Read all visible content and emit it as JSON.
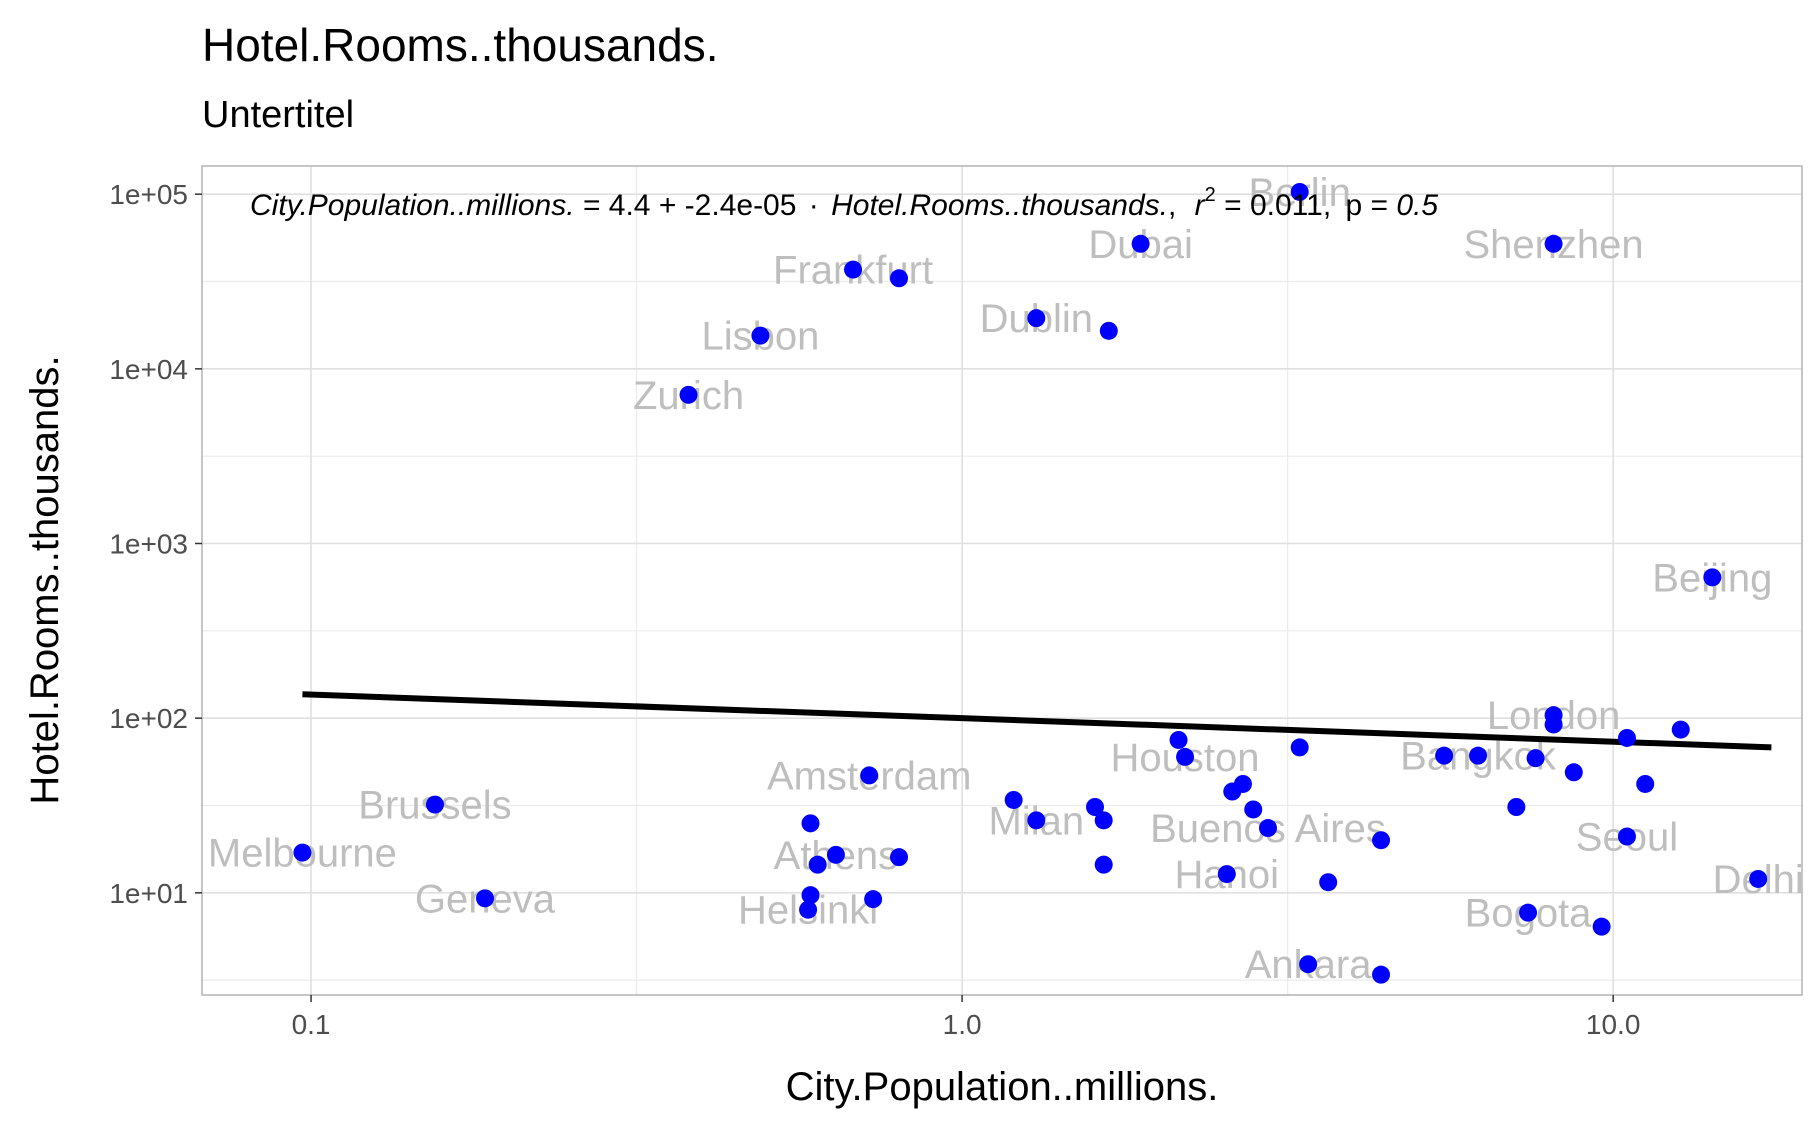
{
  "chart_data": {
    "type": "scatter",
    "title": "Hotel.Rooms..thousands.",
    "subtitle": "Untertitel",
    "xlabel": "City.Population..millions.",
    "ylabel": "Hotel.Rooms..thousands.",
    "x_scale": "log10",
    "y_scale": "log10",
    "xlim": [
      0.068,
      19.5
    ],
    "ylim": [
      2.6,
      145000
    ],
    "x_ticks": [
      {
        "value": 0.1,
        "label": "0.1"
      },
      {
        "value": 1,
        "label": "1.0"
      },
      {
        "value": 10,
        "label": "10.0"
      }
    ],
    "y_ticks": [
      {
        "value": 10,
        "label": "1e+01"
      },
      {
        "value": 100,
        "label": "1e+02"
      },
      {
        "value": 1000,
        "label": "1e+03"
      },
      {
        "value": 10000,
        "label": "1e+04"
      },
      {
        "value": 100000,
        "label": "1e+05"
      }
    ],
    "grid": true,
    "point_color": "#0000ff",
    "label_color": "#bebebe",
    "line_color": "#000000",
    "equation": {
      "lhs": "City.Population..millions.",
      "eq": "= 4.4 + -2.4e-05",
      "dot": "·",
      "var": "Hotel.Rooms..thousands.",
      "comma1": ",",
      "r": "r",
      "sup": "2",
      "rval": "= 0.011,",
      "p": "p =",
      "pval": "0.5"
    },
    "trend_line": [
      {
        "x": 0.097,
        "y": 137
      },
      {
        "x": 17.5,
        "y": 68
      }
    ],
    "points": [
      {
        "x": 0.097,
        "y": 17,
        "label": "Melbourne"
      },
      {
        "x": 0.155,
        "y": 32,
        "label": "Brussels"
      },
      {
        "x": 0.185,
        "y": 9.3,
        "label": "Geneva"
      },
      {
        "x": 0.38,
        "y": 7100,
        "label": "Zurich"
      },
      {
        "x": 0.49,
        "y": 15500,
        "label": "Lisbon"
      },
      {
        "x": 0.585,
        "y": 25,
        "label": ""
      },
      {
        "x": 0.585,
        "y": 9.7,
        "label": ""
      },
      {
        "x": 0.58,
        "y": 8,
        "label": "Helsinki"
      },
      {
        "x": 0.6,
        "y": 14.5,
        "label": ""
      },
      {
        "x": 0.64,
        "y": 16.5,
        "label": "Athens"
      },
      {
        "x": 0.68,
        "y": 37000,
        "label": "Frankfurt"
      },
      {
        "x": 0.72,
        "y": 47,
        "label": "Amsterdam"
      },
      {
        "x": 0.73,
        "y": 9.2,
        "label": ""
      },
      {
        "x": 0.8,
        "y": 33000,
        "label": ""
      },
      {
        "x": 0.8,
        "y": 16,
        "label": ""
      },
      {
        "x": 1.2,
        "y": 34,
        "label": ""
      },
      {
        "x": 1.3,
        "y": 26,
        "label": "Milan"
      },
      {
        "x": 1.3,
        "y": 19500,
        "label": "Dublin"
      },
      {
        "x": 1.6,
        "y": 31,
        "label": ""
      },
      {
        "x": 1.65,
        "y": 26,
        "label": ""
      },
      {
        "x": 1.65,
        "y": 14.5,
        "label": ""
      },
      {
        "x": 1.68,
        "y": 16500,
        "label": ""
      },
      {
        "x": 1.88,
        "y": 52000,
        "label": "Dubai"
      },
      {
        "x": 2.15,
        "y": 75,
        "label": ""
      },
      {
        "x": 2.2,
        "y": 60,
        "label": "Houston"
      },
      {
        "x": 2.6,
        "y": 38,
        "label": ""
      },
      {
        "x": 2.7,
        "y": 42,
        "label": ""
      },
      {
        "x": 2.8,
        "y": 30,
        "label": ""
      },
      {
        "x": 2.95,
        "y": 23.5,
        "label": "Buenos Aires"
      },
      {
        "x": 2.55,
        "y": 12.8,
        "label": "Hanoi"
      },
      {
        "x": 3.3,
        "y": 68,
        "label": ""
      },
      {
        "x": 3.3,
        "y": 103000,
        "label": "Berlin"
      },
      {
        "x": 3.4,
        "y": 3.9,
        "label": "Ankara"
      },
      {
        "x": 3.65,
        "y": 11.5,
        "label": ""
      },
      {
        "x": 4.4,
        "y": 20,
        "label": ""
      },
      {
        "x": 4.4,
        "y": 3.4,
        "label": ""
      },
      {
        "x": 5.5,
        "y": 61,
        "label": ""
      },
      {
        "x": 6.2,
        "y": 61,
        "label": "Bangkok"
      },
      {
        "x": 7.1,
        "y": 31,
        "label": ""
      },
      {
        "x": 7.4,
        "y": 7.7,
        "label": "Bogota"
      },
      {
        "x": 7.6,
        "y": 59,
        "label": ""
      },
      {
        "x": 8.1,
        "y": 92,
        "label": ""
      },
      {
        "x": 8.1,
        "y": 104,
        "label": "London"
      },
      {
        "x": 8.1,
        "y": 52000,
        "label": "Shenzhen"
      },
      {
        "x": 8.7,
        "y": 49,
        "label": ""
      },
      {
        "x": 9.6,
        "y": 6.4,
        "label": ""
      },
      {
        "x": 10.5,
        "y": 77,
        "label": ""
      },
      {
        "x": 10.5,
        "y": 21,
        "label": "Seoul"
      },
      {
        "x": 11.2,
        "y": 42,
        "label": ""
      },
      {
        "x": 12.7,
        "y": 86,
        "label": ""
      },
      {
        "x": 14.2,
        "y": 640,
        "label": "Beijing"
      },
      {
        "x": 16.7,
        "y": 12,
        "label": "Delhi"
      }
    ]
  }
}
